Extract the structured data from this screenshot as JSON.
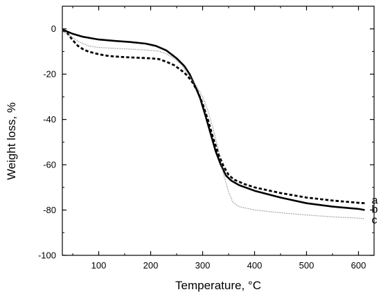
{
  "chart_data": {
    "type": "line",
    "xlabel": "Temperature, °C",
    "ylabel": "Weight loss, %",
    "xlim": [
      30,
      630
    ],
    "ylim": [
      -100,
      10
    ],
    "x_ticks": [
      100,
      200,
      300,
      400,
      500,
      600
    ],
    "y_ticks": [
      0,
      -20,
      -40,
      -60,
      -80,
      -100
    ],
    "grid": false,
    "legend": "none",
    "series": [
      {
        "name": "a",
        "style": "dashed",
        "color": "#000000",
        "points": [
          [
            30,
            -0.5
          ],
          [
            40,
            -2
          ],
          [
            50,
            -5
          ],
          [
            60,
            -7.5
          ],
          [
            70,
            -9
          ],
          [
            80,
            -10
          ],
          [
            100,
            -11.2
          ],
          [
            120,
            -12
          ],
          [
            150,
            -12.5
          ],
          [
            180,
            -12.8
          ],
          [
            200,
            -13
          ],
          [
            215,
            -13.3
          ],
          [
            230,
            -14.5
          ],
          [
            245,
            -16
          ],
          [
            260,
            -18.5
          ],
          [
            270,
            -20.5
          ],
          [
            280,
            -23.5
          ],
          [
            290,
            -27.5
          ],
          [
            300,
            -33
          ],
          [
            310,
            -40
          ],
          [
            320,
            -48
          ],
          [
            330,
            -55
          ],
          [
            340,
            -60.5
          ],
          [
            350,
            -64.5
          ],
          [
            360,
            -66.5
          ],
          [
            380,
            -68.5
          ],
          [
            400,
            -70
          ],
          [
            450,
            -72.5
          ],
          [
            500,
            -74.5
          ],
          [
            550,
            -75.8
          ],
          [
            600,
            -76.8
          ],
          [
            612,
            -77
          ]
        ]
      },
      {
        "name": "b",
        "style": "solid",
        "color": "#000000",
        "points": [
          [
            30,
            -0.3
          ],
          [
            50,
            -2.2
          ],
          [
            70,
            -3.5
          ],
          [
            100,
            -4.7
          ],
          [
            130,
            -5.3
          ],
          [
            160,
            -5.8
          ],
          [
            190,
            -6.5
          ],
          [
            210,
            -7.5
          ],
          [
            230,
            -9.5
          ],
          [
            250,
            -13
          ],
          [
            265,
            -16.5
          ],
          [
            275,
            -20
          ],
          [
            285,
            -25
          ],
          [
            295,
            -30.5
          ],
          [
            305,
            -38
          ],
          [
            315,
            -46
          ],
          [
            325,
            -54
          ],
          [
            335,
            -60
          ],
          [
            345,
            -64.8
          ],
          [
            355,
            -67
          ],
          [
            370,
            -69
          ],
          [
            400,
            -71.5
          ],
          [
            450,
            -74.5
          ],
          [
            500,
            -77
          ],
          [
            550,
            -78.5
          ],
          [
            600,
            -79.5
          ],
          [
            612,
            -80
          ]
        ]
      },
      {
        "name": "c",
        "style": "dotted",
        "color": "#777777",
        "points": [
          [
            30,
            -0.5
          ],
          [
            45,
            -3
          ],
          [
            60,
            -5.5
          ],
          [
            80,
            -7.5
          ],
          [
            100,
            -8.2
          ],
          [
            130,
            -8.6
          ],
          [
            160,
            -8.9
          ],
          [
            190,
            -9.3
          ],
          [
            215,
            -9.8
          ],
          [
            230,
            -11
          ],
          [
            245,
            -13
          ],
          [
            260,
            -16
          ],
          [
            275,
            -21
          ],
          [
            290,
            -26
          ],
          [
            300,
            -30
          ],
          [
            310,
            -36
          ],
          [
            320,
            -44
          ],
          [
            330,
            -53
          ],
          [
            340,
            -64
          ],
          [
            350,
            -72
          ],
          [
            358,
            -76.5
          ],
          [
            370,
            -78.5
          ],
          [
            400,
            -80
          ],
          [
            450,
            -81.2
          ],
          [
            500,
            -82.2
          ],
          [
            550,
            -83
          ],
          [
            600,
            -83.6
          ],
          [
            612,
            -83.8
          ]
        ]
      }
    ]
  }
}
